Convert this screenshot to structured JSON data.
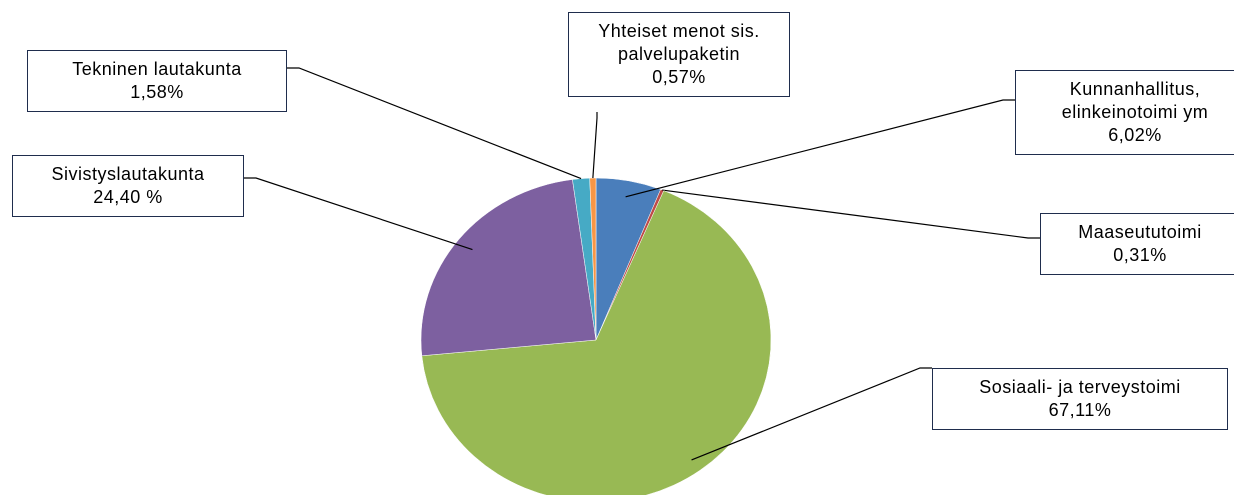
{
  "chart_data": {
    "type": "pie",
    "categories": [
      "Kunnanhallitus,\nelinkeinotoimi ym",
      "Maaseututoimi",
      "Sosiaali- ja terveystoimi",
      "Sivistyslautakunta",
      "Tekninen lautakunta",
      "Yhteiset menot sis.\npalvelupaketin"
    ],
    "values": [
      6.02,
      0.31,
      67.11,
      24.4,
      1.58,
      0.57
    ],
    "value_labels": [
      "6,02%",
      "0,31%",
      "67,11%",
      "24,40 %",
      "1,58%",
      "0,57%"
    ],
    "colors": [
      "#4a7ebb",
      "#be4b48",
      "#98b954",
      "#7d60a0",
      "#46aac5",
      "#f79646"
    ]
  }
}
